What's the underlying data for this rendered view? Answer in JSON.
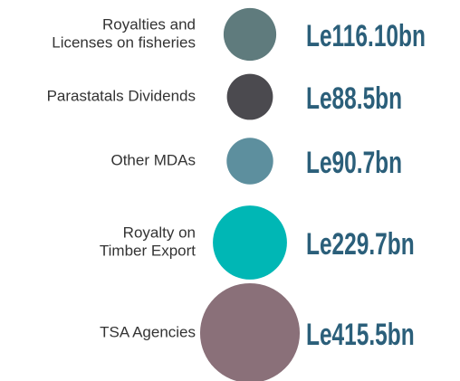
{
  "chart_data": {
    "type": "bubble",
    "categories": [
      [
        "Royalties and",
        "Licenses on fisheries"
      ],
      [
        "Parastatals Dividends"
      ],
      [
        "Other MDAs"
      ],
      [
        "Royalty on",
        "Timber Export"
      ],
      [
        "TSA Agencies"
      ]
    ],
    "values": [
      116.1,
      88.5,
      90.7,
      229.7,
      415.5
    ],
    "value_labels": [
      "Le116.10bn",
      "Le88.5bn",
      "Le90.7bn",
      "Le229.7bn",
      "Le415.5bn"
    ],
    "colors": [
      "#5f7b7d",
      "#4b4a4f",
      "#5d8f9e",
      "#00b7b5",
      "#8a7079"
    ],
    "label_color": "#2b5f7a"
  }
}
